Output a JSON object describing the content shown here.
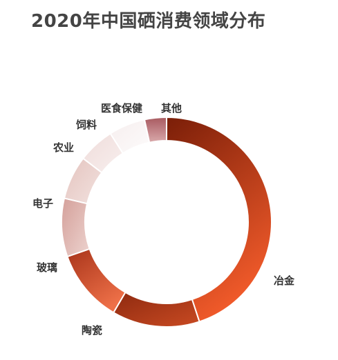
{
  "chart_data": {
    "type": "pie",
    "title": "2020年中国硒消费领域分布",
    "categories": [
      "冶金",
      "陶瓷",
      "玻璃",
      "电子",
      "农业",
      "饲料",
      "医食保健",
      "其他"
    ],
    "values": [
      40,
      12,
      10,
      8,
      6,
      5,
      5,
      3
    ],
    "style": "donut",
    "colors": [
      "#a9391b",
      "#b2401f",
      "#cf5a32",
      "#e3b8b1",
      "#ecd3cf",
      "#f3e7e6",
      "#f9f6f6",
      "#b7757a"
    ]
  }
}
